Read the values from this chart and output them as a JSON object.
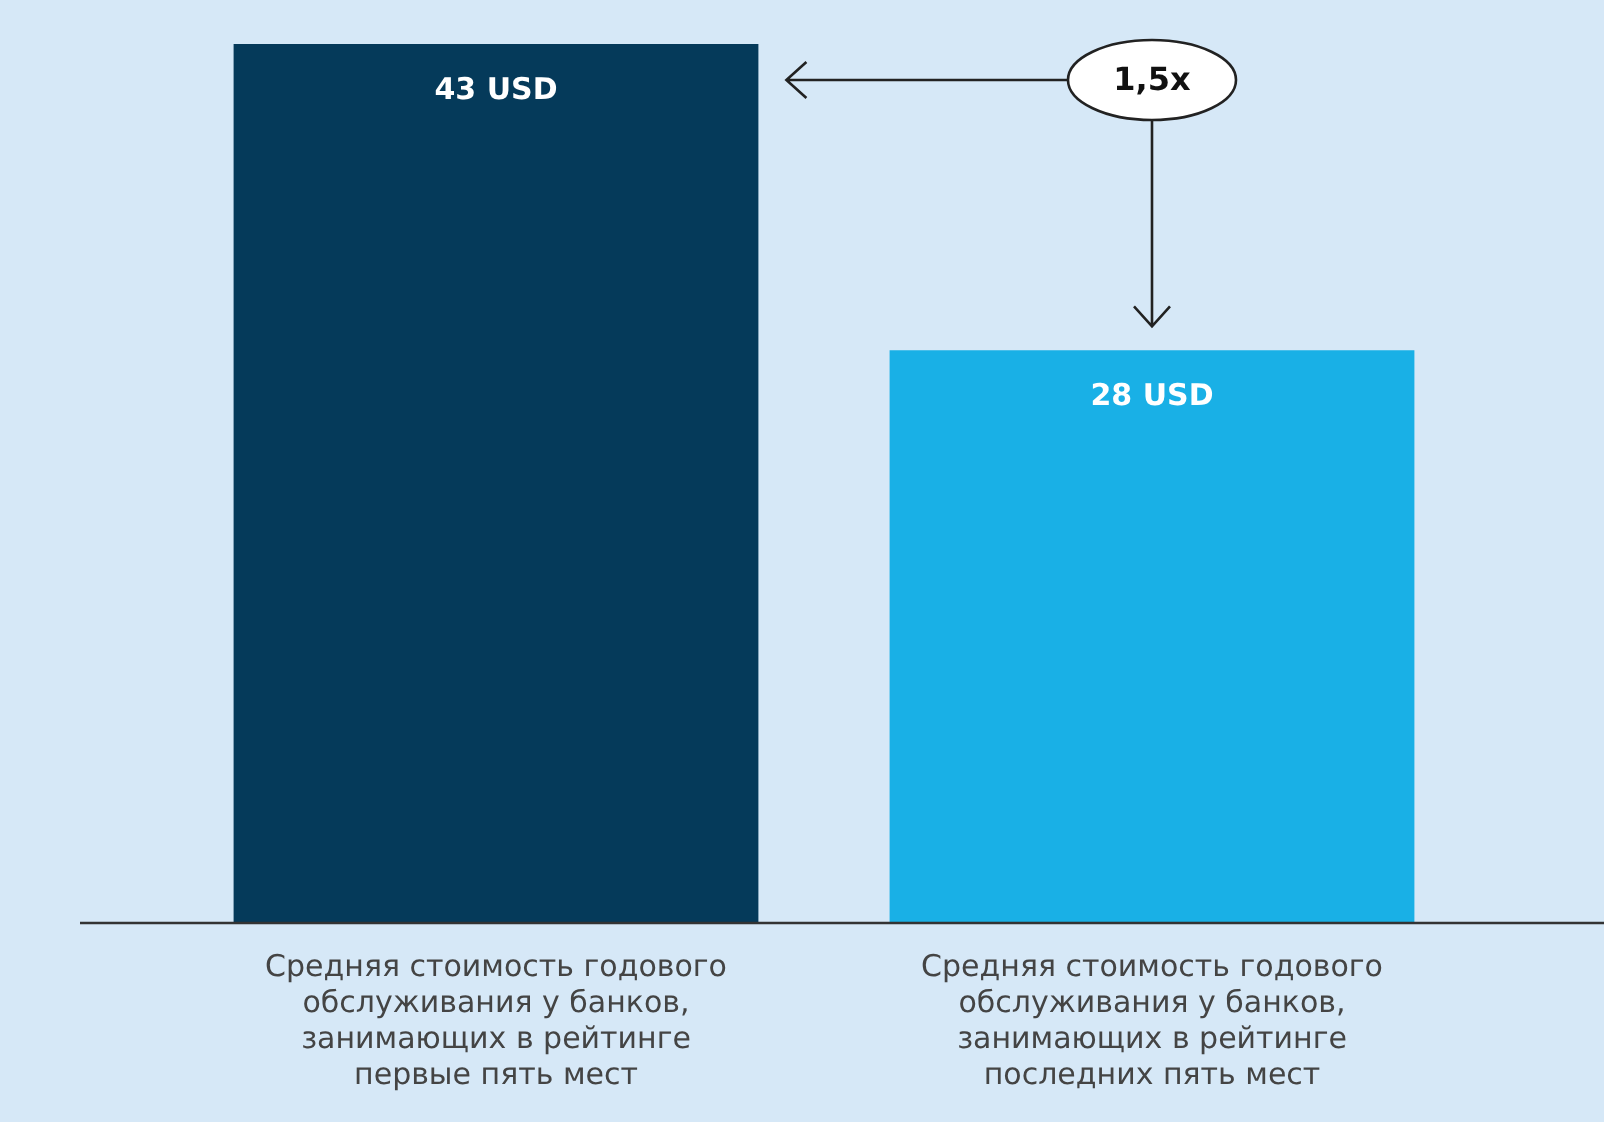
{
  "chart_data": {
    "type": "bar",
    "categories": [
      "Средняя стоимость годового обслуживания у банков, занимающих в рейтинге первые пять мест",
      "Средняя стоимость годового обслуживания у банков, занимающих в рейтинге последних пять мест"
    ],
    "values": [
      43,
      28
    ],
    "colors": [
      "#053a5a",
      "#19b0e6"
    ],
    "value_labels": [
      "43 USD",
      "28 USD"
    ],
    "annotations": [
      "1,5x"
    ]
  }
}
